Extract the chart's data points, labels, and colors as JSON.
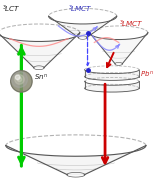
{
  "colors": {
    "background": "#ffffff",
    "bowl_edge": "#555555",
    "bowl_fill": "#d8d8d8",
    "green_arrow": "#00cc00",
    "red_arrow": "#cc0000",
    "blue_arrow": "#2222cc",
    "pink_curve": "#ff8888",
    "light_blue_curve": "#8888ff",
    "dashed_blue": "#4444ff",
    "label_blue": "#3333bb",
    "label_red": "#cc2222",
    "label_dark": "#222222",
    "ball_color": "#888870",
    "ball_highlight": "#ccccaa"
  },
  "labels": {
    "top_left": "3LCT",
    "top_center": "3LMCT",
    "right": "3LMCT",
    "sn": "Sn",
    "pb": "Pb"
  }
}
